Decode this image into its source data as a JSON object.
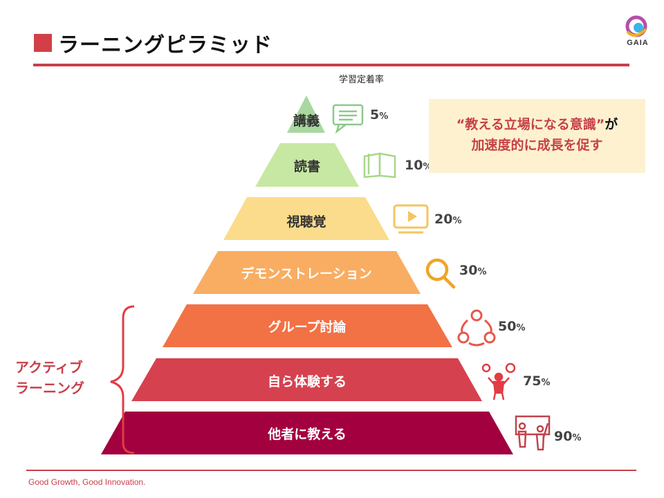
{
  "header": {
    "title": "ラーニングピラミッド",
    "logo_text": "GAIA"
  },
  "column_header": "学習定着率",
  "pyramid": {
    "levels": [
      {
        "label": "講義",
        "percent": "5",
        "unit": "%",
        "color": "#a8d8a0",
        "icon": "chat-bubble-icon"
      },
      {
        "label": "読書",
        "percent": "10",
        "unit": "%",
        "color": "#c7e8a3",
        "icon": "open-book-icon"
      },
      {
        "label": "視聴覚",
        "percent": "20",
        "unit": "%",
        "color": "#fbdc8c",
        "icon": "video-screen-icon"
      },
      {
        "label": "デモンストレーション",
        "percent": "30",
        "unit": "%",
        "color": "#f9ad62",
        "icon": "magnifier-icon"
      },
      {
        "label": "グループ討論",
        "percent": "50",
        "unit": "%",
        "color": "#f27145",
        "icon": "group-discussion-icon"
      },
      {
        "label": "自ら体験する",
        "percent": "75",
        "unit": "%",
        "color": "#d6414f",
        "icon": "idea-person-icon"
      },
      {
        "label": "他者に教える",
        "percent": "90",
        "unit": "%",
        "color": "#a3003f",
        "icon": "teaching-people-icon"
      }
    ]
  },
  "callout": {
    "line1_quote": "“教える立場になる意識”",
    "line1_suffix": "が",
    "line2": "加速度的に成長を促す"
  },
  "active_learning": {
    "line1": "アクティブ",
    "line2": "ラーニング",
    "color": "#c7404a"
  },
  "footer": "Good Growth,  Good Innovation."
}
